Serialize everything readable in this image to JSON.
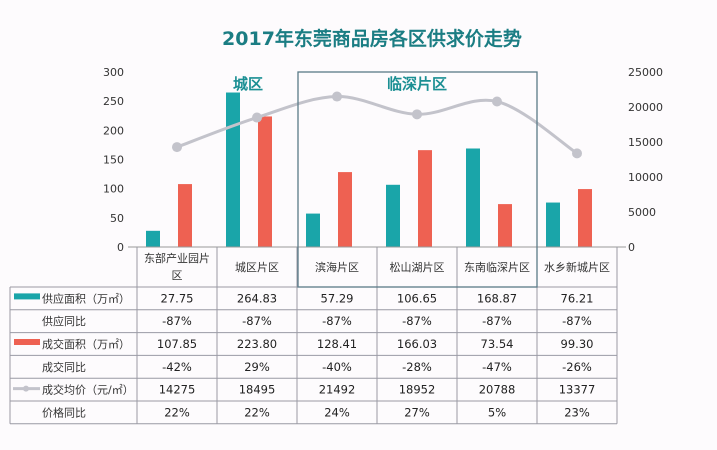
{
  "chart_data": {
    "type": "bar",
    "title": "2017年东莞商品房各区供求价走势",
    "categories": [
      "东部产业园片区",
      "城区片区",
      "滨海片区",
      "松山湖片区",
      "东南临深片区",
      "水乡新城片区"
    ],
    "category_lines": [
      [
        "东部产业园片",
        "区"
      ],
      [
        "城区片区"
      ],
      [
        "滨海片区"
      ],
      [
        "松山湖片区"
      ],
      [
        "东南临深片区"
      ],
      [
        "水乡新城片区"
      ]
    ],
    "left_axis": {
      "ylim": [
        0,
        300
      ],
      "ticks": [
        "0",
        "50",
        "100",
        "150",
        "200",
        "250",
        "300"
      ]
    },
    "right_axis": {
      "ylim": [
        0,
        25000
      ],
      "ticks": [
        "0",
        "5000",
        "10000",
        "15000",
        "20000",
        "25000"
      ]
    },
    "annotations": {
      "city": "城区",
      "shenzhen": "临深片区"
    },
    "series": [
      {
        "name": "供应面积（万㎡）",
        "type": "bar",
        "axis": "left",
        "color": "#1aa5a9",
        "values": [
          27.75,
          264.83,
          57.29,
          106.65,
          168.87,
          76.21
        ],
        "labels": [
          "27.75",
          "264.83",
          "57.29",
          "106.65",
          "168.87",
          "76.21"
        ]
      },
      {
        "name": "供应同比",
        "type": "table",
        "labels": [
          "-87%",
          "-87%",
          "-87%",
          "-87%",
          "-87%",
          "-87%"
        ]
      },
      {
        "name": "成交面积（万㎡）",
        "type": "bar",
        "axis": "left",
        "color": "#ee6152",
        "values": [
          107.85,
          223.8,
          128.41,
          166.03,
          73.54,
          99.3
        ],
        "labels": [
          "107.85",
          "223.80",
          "128.41",
          "166.03",
          "73.54",
          "99.30"
        ]
      },
      {
        "name": "成交同比",
        "type": "table",
        "labels": [
          "-42%",
          "29%",
          "-40%",
          "-28%",
          "-47%",
          "-26%"
        ]
      },
      {
        "name": "成交均价（元/㎡）",
        "type": "line",
        "axis": "right",
        "color": "#c3c3cb",
        "values": [
          14275,
          18495,
          21492,
          18952,
          20788,
          13377
        ],
        "labels": [
          "14275",
          "18495",
          "21492",
          "18952",
          "20788",
          "13377"
        ]
      },
      {
        "name": "价格同比",
        "type": "table",
        "labels": [
          "22%",
          "22%",
          "24%",
          "27%",
          "5%",
          "23%"
        ]
      }
    ]
  }
}
